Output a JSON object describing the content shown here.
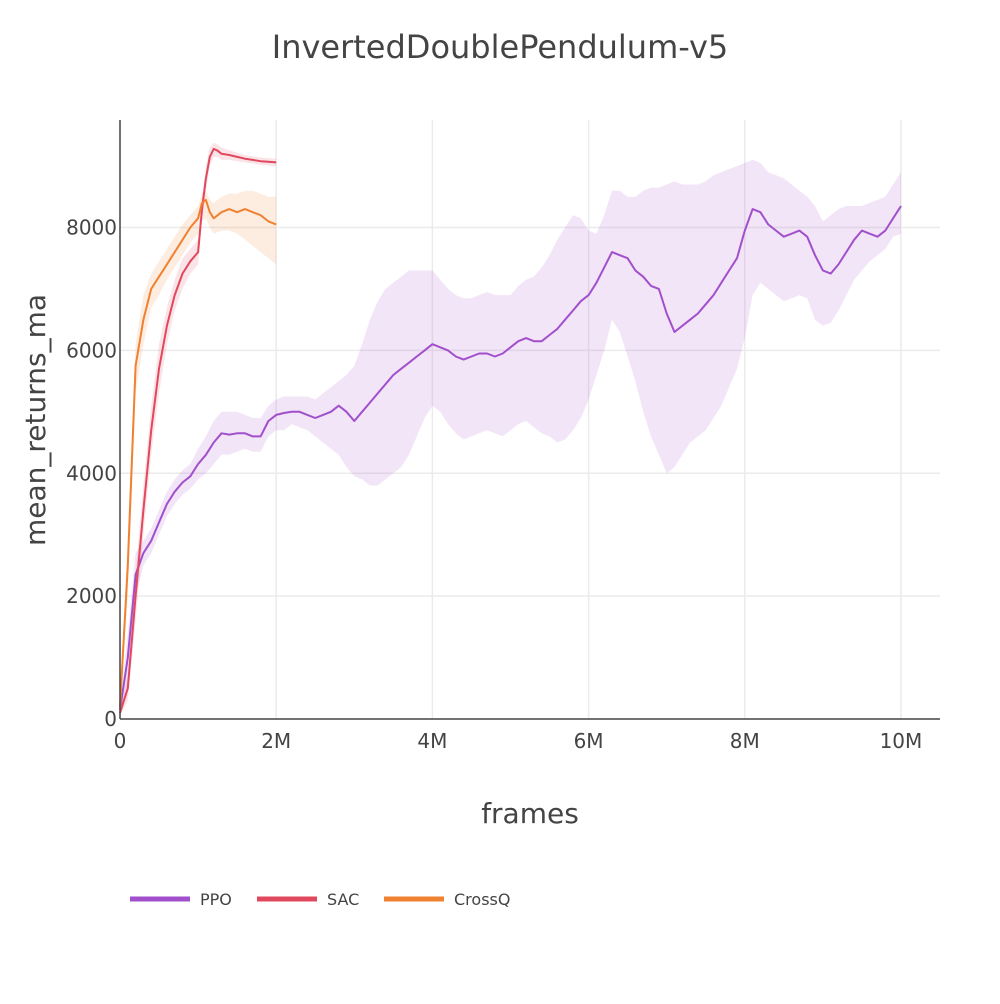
{
  "chart_data": {
    "type": "line",
    "title": "InvertedDoublePendulum-v5",
    "xlabel": "frames",
    "ylabel": "mean_returns_ma",
    "xlim": [
      0,
      10500000
    ],
    "ylim": [
      0,
      9750
    ],
    "x_ticks": [
      0,
      2000000,
      4000000,
      6000000,
      8000000,
      10000000
    ],
    "x_tick_labels": [
      "0",
      "2M",
      "4M",
      "6M",
      "8M",
      "10M"
    ],
    "y_ticks": [
      0,
      2000,
      4000,
      6000,
      8000
    ],
    "y_tick_labels": [
      "0",
      "2000",
      "4000",
      "6000",
      "8000"
    ],
    "grid": true,
    "legend_position": "bottom-left",
    "series": [
      {
        "name": "PPO",
        "color": "#a24fcc",
        "band_color": "rgba(162,79,204,0.15)",
        "x": [
          0,
          100000,
          200000,
          300000,
          400000,
          500000,
          600000,
          700000,
          800000,
          900000,
          1000000,
          1100000,
          1200000,
          1300000,
          1400000,
          1500000,
          1600000,
          1700000,
          1800000,
          1900000,
          2000000,
          2100000,
          2200000,
          2300000,
          2400000,
          2500000,
          2600000,
          2700000,
          2800000,
          2900000,
          3000000,
          3100000,
          3200000,
          3300000,
          3400000,
          3500000,
          3600000,
          3700000,
          3800000,
          3900000,
          4000000,
          4100000,
          4200000,
          4300000,
          4400000,
          4500000,
          4600000,
          4700000,
          4800000,
          4900000,
          5000000,
          5100000,
          5200000,
          5300000,
          5400000,
          5500000,
          5600000,
          5700000,
          5800000,
          5900000,
          6000000,
          6100000,
          6200000,
          6300000,
          6400000,
          6500000,
          6600000,
          6700000,
          6800000,
          6900000,
          7000000,
          7100000,
          7200000,
          7300000,
          7400000,
          7500000,
          7600000,
          7700000,
          7800000,
          7900000,
          8000000,
          8100000,
          8200000,
          8300000,
          8400000,
          8500000,
          8600000,
          8700000,
          8800000,
          8900000,
          9000000,
          9100000,
          9200000,
          9300000,
          9400000,
          9500000,
          9600000,
          9700000,
          9800000,
          9900000,
          10000000
        ],
        "y": [
          150,
          1000,
          2350,
          2700,
          2900,
          3200,
          3500,
          3700,
          3850,
          3950,
          4150,
          4300,
          4500,
          4650,
          4630,
          4650,
          4650,
          4600,
          4600,
          4850,
          4950,
          4980,
          5000,
          5000,
          4950,
          4900,
          4950,
          5000,
          5100,
          5000,
          4850,
          5000,
          5150,
          5300,
          5450,
          5600,
          5700,
          5800,
          5900,
          6000,
          6100,
          6050,
          6000,
          5900,
          5850,
          5900,
          5950,
          5950,
          5900,
          5950,
          6050,
          6150,
          6200,
          6150,
          6150,
          6250,
          6350,
          6500,
          6650,
          6800,
          6900,
          7100,
          7350,
          7600,
          7550,
          7500,
          7300,
          7200,
          7050,
          7000,
          6600,
          6300,
          6400,
          6500,
          6600,
          6750,
          6900,
          7100,
          7300,
          7500,
          7950,
          8300,
          8250,
          8050,
          7950,
          7850,
          7900,
          7950,
          7850,
          7550,
          7300,
          7250,
          7400,
          7600,
          7800,
          7950,
          7900,
          7850,
          7950,
          8150,
          8350
        ],
        "y_lower": [
          50,
          600,
          2000,
          2500,
          2700,
          3000,
          3300,
          3500,
          3650,
          3750,
          3900,
          4000,
          4150,
          4300,
          4300,
          4350,
          4400,
          4350,
          4350,
          4600,
          4700,
          4700,
          4800,
          4750,
          4700,
          4600,
          4500,
          4400,
          4300,
          4100,
          3950,
          3900,
          3800,
          3800,
          3900,
          4000,
          4100,
          4300,
          4600,
          4900,
          5100,
          5000,
          4800,
          4650,
          4550,
          4600,
          4650,
          4700,
          4650,
          4600,
          4700,
          4800,
          4850,
          4750,
          4650,
          4600,
          4500,
          4550,
          4700,
          4900,
          5200,
          5600,
          6000,
          6500,
          6300,
          5900,
          5500,
          5000,
          4600,
          4300,
          4000,
          4100,
          4300,
          4500,
          4600,
          4700,
          4900,
          5100,
          5400,
          5700,
          6200,
          6900,
          7100,
          7000,
          6900,
          6800,
          6850,
          6900,
          6850,
          6500,
          6400,
          6450,
          6650,
          6900,
          7150,
          7300,
          7450,
          7550,
          7650,
          7850,
          7900
        ],
        "y_upper": [
          250,
          1400,
          2700,
          2900,
          3100,
          3400,
          3700,
          3900,
          4050,
          4150,
          4400,
          4600,
          4850,
          5000,
          5000,
          5000,
          4950,
          4900,
          4900,
          5100,
          5200,
          5250,
          5250,
          5250,
          5250,
          5200,
          5300,
          5400,
          5500,
          5600,
          5750,
          6100,
          6500,
          6800,
          7000,
          7100,
          7200,
          7300,
          7300,
          7300,
          7300,
          7150,
          7000,
          6900,
          6850,
          6850,
          6900,
          6950,
          6900,
          6900,
          6900,
          7050,
          7150,
          7200,
          7350,
          7550,
          7800,
          8000,
          8200,
          8150,
          7950,
          7900,
          8200,
          8600,
          8600,
          8500,
          8500,
          8600,
          8650,
          8650,
          8700,
          8750,
          8700,
          8700,
          8700,
          8750,
          8850,
          8900,
          8950,
          9000,
          9050,
          9100,
          9050,
          8900,
          8850,
          8800,
          8700,
          8600,
          8500,
          8350,
          8100,
          8200,
          8300,
          8350,
          8350,
          8350,
          8400,
          8450,
          8500,
          8700,
          8900
        ]
      },
      {
        "name": "SAC",
        "color": "#e1485e",
        "band_color": "rgba(225,72,94,0.15)",
        "x": [
          0,
          100000,
          200000,
          300000,
          400000,
          500000,
          600000,
          700000,
          800000,
          900000,
          1000000,
          1050000,
          1100000,
          1150000,
          1200000,
          1250000,
          1300000,
          1400000,
          1500000,
          1600000,
          1700000,
          1800000,
          1900000,
          2000000
        ],
        "y": [
          100,
          500,
          2000,
          3400,
          4700,
          5700,
          6400,
          6900,
          7250,
          7450,
          7600,
          8300,
          8800,
          9150,
          9280,
          9250,
          9200,
          9180,
          9150,
          9120,
          9100,
          9080,
          9070,
          9060
        ],
        "y_lower": [
          50,
          300,
          1600,
          3000,
          4300,
          5300,
          6100,
          6650,
          7000,
          7250,
          7400,
          8100,
          8600,
          9000,
          9150,
          9150,
          9100,
          9100,
          9080,
          9060,
          9040,
          9020,
          9010,
          9000
        ],
        "y_upper": [
          150,
          700,
          2400,
          3800,
          5100,
          6100,
          6700,
          7150,
          7500,
          7650,
          7800,
          8500,
          9000,
          9300,
          9380,
          9350,
          9300,
          9260,
          9220,
          9180,
          9160,
          9140,
          9130,
          9120
        ]
      },
      {
        "name": "CrossQ",
        "color": "#f08130",
        "band_color": "rgba(240,129,48,0.15)",
        "x": [
          0,
          100000,
          200000,
          300000,
          400000,
          500000,
          600000,
          700000,
          800000,
          900000,
          1000000,
          1050000,
          1100000,
          1150000,
          1200000,
          1300000,
          1400000,
          1500000,
          1600000,
          1700000,
          1800000,
          1900000,
          2000000
        ],
        "y": [
          200,
          2500,
          5750,
          6500,
          7000,
          7200,
          7400,
          7600,
          7800,
          8000,
          8150,
          8400,
          8450,
          8250,
          8150,
          8250,
          8300,
          8250,
          8300,
          8250,
          8200,
          8100,
          8050
        ],
        "y_lower": [
          100,
          2000,
          5300,
          6100,
          6700,
          6900,
          7150,
          7350,
          7550,
          7750,
          7900,
          8100,
          8150,
          8000,
          7900,
          7950,
          7950,
          7900,
          7800,
          7700,
          7600,
          7500,
          7400
        ],
        "y_upper": [
          300,
          3000,
          6100,
          6900,
          7250,
          7450,
          7650,
          7850,
          8050,
          8200,
          8350,
          8550,
          8600,
          8450,
          8400,
          8500,
          8550,
          8550,
          8600,
          8600,
          8550,
          8500,
          8500
        ]
      }
    ]
  }
}
